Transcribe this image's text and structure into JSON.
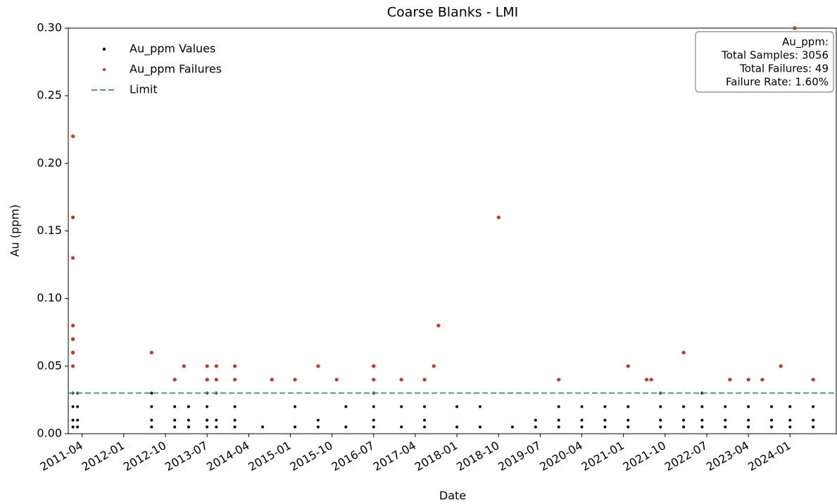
{
  "chart_data": {
    "type": "scatter",
    "title": "Coarse Blanks - LMI",
    "x_label": "Date",
    "y_label": "Au (ppm)",
    "xlim": [
      "2011-01",
      "2024-11"
    ],
    "ylim": [
      0,
      0.3
    ],
    "xticks": [
      "2011-04",
      "2012-01",
      "2012-10",
      "2013-07",
      "2014-04",
      "2015-01",
      "2015-10",
      "2016-07",
      "2017-04",
      "2018-01",
      "2018-10",
      "2019-07",
      "2020-04",
      "2021-01",
      "2021-10",
      "2022-07",
      "2023-04",
      "2024-01"
    ],
    "yticks": [
      {
        "value": 0,
        "label": "0.00"
      },
      {
        "value": 0.05,
        "label": "0.05"
      },
      {
        "value": 0.1,
        "label": "0.10"
      },
      {
        "value": 0.15,
        "label": "0.15"
      },
      {
        "value": 0.2,
        "label": "0.20"
      },
      {
        "value": 0.25,
        "label": "0.25"
      },
      {
        "value": 0.3,
        "label": "0.30"
      }
    ],
    "legend": "upper left",
    "series": [
      {
        "name": "Au_ppm Values",
        "color": "#000000",
        "x": [
          "2011-02",
          "2011-02",
          "2011-02",
          "2011-02",
          "2011-03",
          "2011-03",
          "2011-03",
          "2011-03",
          "2012-07",
          "2012-07",
          "2012-07",
          "2012-07",
          "2012-12",
          "2012-12",
          "2012-12",
          "2013-03",
          "2013-03",
          "2013-03",
          "2013-07",
          "2013-07",
          "2013-07",
          "2013-07",
          "2013-09",
          "2013-09",
          "2013-09",
          "2014-01",
          "2014-01",
          "2014-01",
          "2014-07",
          "2015-02",
          "2015-02",
          "2015-07",
          "2015-07",
          "2016-01",
          "2016-01",
          "2016-07",
          "2016-07",
          "2016-07",
          "2016-07",
          "2017-01",
          "2017-01",
          "2017-06",
          "2017-06",
          "2017-06",
          "2018-01",
          "2018-01",
          "2018-06",
          "2018-06",
          "2019-01",
          "2019-06",
          "2019-06",
          "2019-11",
          "2019-11",
          "2019-11",
          "2020-04",
          "2020-04",
          "2020-04",
          "2020-09",
          "2020-09",
          "2020-09",
          "2021-02",
          "2021-02",
          "2021-02",
          "2021-09",
          "2021-09",
          "2021-09",
          "2021-09",
          "2022-02",
          "2022-02",
          "2022-02",
          "2022-06",
          "2022-06",
          "2022-06",
          "2022-06",
          "2022-11",
          "2022-11",
          "2022-11",
          "2023-04",
          "2023-04",
          "2023-04",
          "2023-09",
          "2023-09",
          "2023-09",
          "2024-01",
          "2024-01",
          "2024-01",
          "2024-06",
          "2024-06",
          "2024-06"
        ],
        "values": [
          0.03,
          0.02,
          0.01,
          0.005,
          0.03,
          0.02,
          0.01,
          0.005,
          0.03,
          0.02,
          0.01,
          0.005,
          0.02,
          0.01,
          0.005,
          0.02,
          0.01,
          0.005,
          0.03,
          0.02,
          0.01,
          0.005,
          0.03,
          0.01,
          0.005,
          0.02,
          0.01,
          0.005,
          0.005,
          0.02,
          0.005,
          0.01,
          0.005,
          0.02,
          0.005,
          0.03,
          0.02,
          0.01,
          0.005,
          0.02,
          0.005,
          0.02,
          0.01,
          0.005,
          0.02,
          0.005,
          0.02,
          0.005,
          0.005,
          0.01,
          0.005,
          0.02,
          0.01,
          0.005,
          0.02,
          0.01,
          0.005,
          0.02,
          0.01,
          0.005,
          0.02,
          0.01,
          0.005,
          0.03,
          0.02,
          0.01,
          0.005,
          0.02,
          0.01,
          0.005,
          0.03,
          0.02,
          0.01,
          0.005,
          0.02,
          0.01,
          0.005,
          0.02,
          0.01,
          0.005,
          0.02,
          0.01,
          0.005,
          0.02,
          0.01,
          0.005,
          0.02,
          0.01,
          0.005
        ]
      },
      {
        "name": "Au_ppm Failures",
        "color": "#c0392b",
        "x": [
          "2011-02",
          "2011-02",
          "2011-02",
          "2011-02",
          "2011-02",
          "2011-02",
          "2011-02",
          "2011-02",
          "2011-02",
          "2011-02",
          "2012-07",
          "2012-12",
          "2013-02",
          "2013-07",
          "2013-07",
          "2013-07",
          "2013-09",
          "2013-09",
          "2014-01",
          "2014-01",
          "2014-09",
          "2015-02",
          "2015-07",
          "2015-11",
          "2016-07",
          "2016-07",
          "2016-07",
          "2017-01",
          "2017-06",
          "2017-08",
          "2017-09",
          "2018-10",
          "2019-11",
          "2021-02",
          "2021-06",
          "2021-07",
          "2022-02",
          "2022-12",
          "2023-04",
          "2023-07",
          "2023-11",
          "2024-02",
          "2024-06"
        ],
        "values": [
          0.22,
          0.16,
          0.13,
          0.08,
          0.07,
          0.07,
          0.06,
          0.06,
          0.06,
          0.05,
          0.06,
          0.04,
          0.05,
          0.05,
          0.04,
          0.04,
          0.05,
          0.04,
          0.05,
          0.04,
          0.04,
          0.04,
          0.05,
          0.04,
          0.05,
          0.05,
          0.04,
          0.04,
          0.04,
          0.05,
          0.08,
          0.16,
          0.04,
          0.05,
          0.04,
          0.04,
          0.06,
          0.04,
          0.04,
          0.04,
          0.05,
          0.3,
          0.04
        ]
      }
    ],
    "limit": {
      "name": "Limit",
      "value": 0.03,
      "color": "#5a9a6a"
    },
    "annotation": [
      "Au_ppm:",
      "Total Samples: 3056",
      "Total Failures: 49",
      "Failure Rate: 1.60%"
    ]
  }
}
